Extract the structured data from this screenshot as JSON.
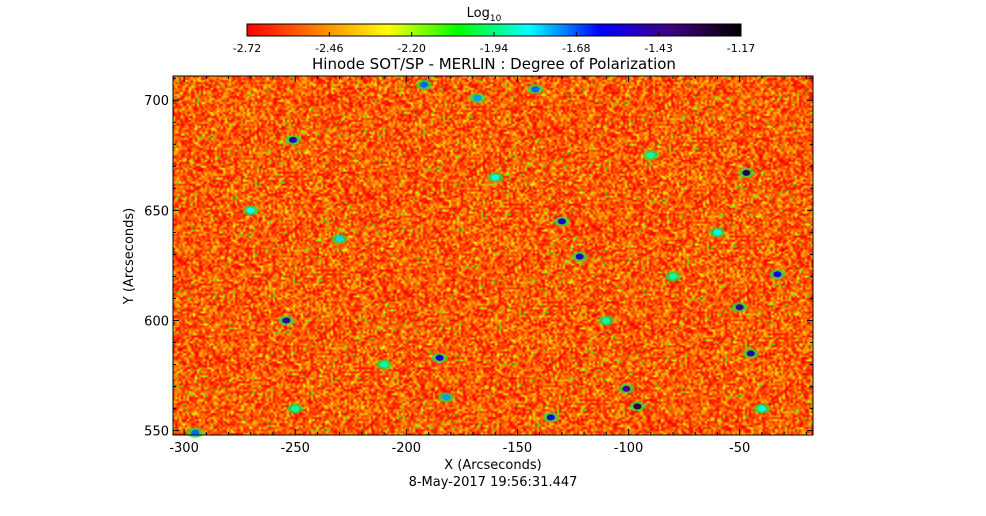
{
  "chart_data": {
    "type": "heatmap",
    "title": "Hinode SOT/SP - MERLIN : Degree of Polarization",
    "xlabel": "X (Arcseconds)",
    "ylabel": "Y (Arcseconds)",
    "footer": "8-May-2017 19:56:31.447",
    "xlim": [
      -305,
      -17
    ],
    "ylim": [
      548,
      711
    ],
    "x_ticks": [
      -300,
      -250,
      -200,
      -150,
      -100,
      -50
    ],
    "y_ticks": [
      550,
      600,
      650,
      700
    ],
    "colorbar": {
      "label_main": "Log",
      "label_sub": "10",
      "range": [
        -2.72,
        -1.17
      ],
      "ticks": [
        "-2.72",
        "-2.46",
        "-2.20",
        "-1.94",
        "-1.68",
        "-1.43",
        "-1.17"
      ],
      "colormap": [
        "#ff0000",
        "#ff8000",
        "#ffff00",
        "#00ff00",
        "#00ffff",
        "#0000ff",
        "#400080",
        "#000000"
      ]
    },
    "background_level": -2.6,
    "features": [
      {
        "x": -251,
        "y": 682,
        "value": -1.5
      },
      {
        "x": -254,
        "y": 600,
        "value": -1.45
      },
      {
        "x": -130,
        "y": 645,
        "value": -1.55
      },
      {
        "x": -122,
        "y": 629,
        "value": -1.5
      },
      {
        "x": -47,
        "y": 667,
        "value": -1.3
      },
      {
        "x": -96,
        "y": 561,
        "value": -1.3
      },
      {
        "x": -101,
        "y": 569,
        "value": -1.4
      },
      {
        "x": -50,
        "y": 606,
        "value": -1.45
      },
      {
        "x": -33,
        "y": 621,
        "value": -1.6
      },
      {
        "x": -45,
        "y": 585,
        "value": -1.5
      },
      {
        "x": -192,
        "y": 707,
        "value": -1.7
      },
      {
        "x": -185,
        "y": 583,
        "value": -1.55
      },
      {
        "x": -135,
        "y": 556,
        "value": -1.6
      },
      {
        "x": -182,
        "y": 565,
        "value": -1.75
      },
      {
        "x": -168,
        "y": 701,
        "value": -1.75
      },
      {
        "x": -142,
        "y": 705,
        "value": -1.7
      },
      {
        "x": -230,
        "y": 637,
        "value": -1.8
      },
      {
        "x": -160,
        "y": 665,
        "value": -1.85
      },
      {
        "x": -80,
        "y": 620,
        "value": -1.9
      },
      {
        "x": -295,
        "y": 549,
        "value": -1.7
      },
      {
        "x": -250,
        "y": 560,
        "value": -1.9
      },
      {
        "x": -210,
        "y": 580,
        "value": -1.9
      },
      {
        "x": -60,
        "y": 640,
        "value": -1.85
      },
      {
        "x": -90,
        "y": 675,
        "value": -1.9
      },
      {
        "x": -270,
        "y": 650,
        "value": -1.85
      },
      {
        "x": -110,
        "y": 600,
        "value": -1.9
      },
      {
        "x": -40,
        "y": 560,
        "value": -1.85
      }
    ]
  }
}
